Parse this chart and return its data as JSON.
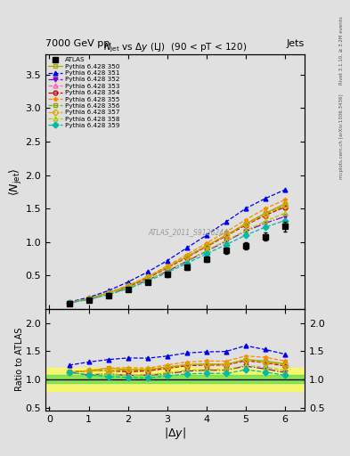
{
  "title_top": "7000 GeV pp",
  "title_top_right": "Jets",
  "main_title": "$N_{jet}$ vs $\\Delta y$ (LJ)  (90 < pT < 120)",
  "xlabel": "$|\\Delta y|$",
  "ylabel_main": "$\\langle N_{jet}\\rangle$",
  "ylabel_ratio": "Ratio to ATLAS",
  "watermark": "ATLAS_2011_S9126244",
  "right_label": "Rivet 3.1.10, ≥ 3.2M events",
  "right_label2": "mcplots.cern.ch [arXiv:1306.3436]",
  "x_data": [
    0.5,
    1.0,
    1.5,
    2.0,
    2.5,
    3.0,
    3.5,
    4.0,
    4.5,
    5.0,
    5.5,
    6.0
  ],
  "atlas_y": [
    0.08,
    0.13,
    0.2,
    0.29,
    0.4,
    0.51,
    0.62,
    0.74,
    0.87,
    0.94,
    1.08,
    1.23
  ],
  "atlas_yerr": [
    0.01,
    0.01,
    0.02,
    0.02,
    0.03,
    0.03,
    0.04,
    0.04,
    0.05,
    0.05,
    0.06,
    0.07
  ],
  "series": [
    {
      "label": "Pythia 6.428 350",
      "color": "#aaaa00",
      "linestyle": "-",
      "marker": "s",
      "markerfill": "none",
      "y": [
        0.09,
        0.15,
        0.24,
        0.34,
        0.47,
        0.62,
        0.78,
        0.94,
        1.1,
        1.27,
        1.43,
        1.57
      ]
    },
    {
      "label": "Pythia 6.428 351",
      "color": "#0000ee",
      "linestyle": "--",
      "marker": "^",
      "markerfill": "full",
      "y": [
        0.1,
        0.17,
        0.27,
        0.4,
        0.55,
        0.72,
        0.91,
        1.1,
        1.3,
        1.5,
        1.65,
        1.78
      ]
    },
    {
      "label": "Pythia 6.428 352",
      "color": "#8800cc",
      "linestyle": "-.",
      "marker": "v",
      "markerfill": "full",
      "y": [
        0.09,
        0.14,
        0.22,
        0.31,
        0.43,
        0.56,
        0.71,
        0.86,
        1.01,
        1.16,
        1.28,
        1.38
      ]
    },
    {
      "label": "Pythia 6.428 353",
      "color": "#ff66aa",
      "linestyle": "--",
      "marker": "^",
      "markerfill": "none",
      "y": [
        0.09,
        0.15,
        0.23,
        0.33,
        0.46,
        0.61,
        0.77,
        0.93,
        1.09,
        1.26,
        1.4,
        1.53
      ]
    },
    {
      "label": "Pythia 6.428 354",
      "color": "#cc0000",
      "linestyle": "--",
      "marker": "o",
      "markerfill": "none",
      "y": [
        0.09,
        0.15,
        0.23,
        0.33,
        0.46,
        0.61,
        0.77,
        0.93,
        1.09,
        1.25,
        1.4,
        1.52
      ]
    },
    {
      "label": "Pythia 6.428 355",
      "color": "#ff8800",
      "linestyle": "--",
      "marker": "*",
      "markerfill": "full",
      "y": [
        0.09,
        0.15,
        0.24,
        0.35,
        0.48,
        0.64,
        0.81,
        0.98,
        1.15,
        1.33,
        1.5,
        1.63
      ]
    },
    {
      "label": "Pythia 6.428 356",
      "color": "#88aa00",
      "linestyle": "--",
      "marker": "s",
      "markerfill": "none",
      "y": [
        0.09,
        0.15,
        0.23,
        0.34,
        0.47,
        0.62,
        0.78,
        0.94,
        1.1,
        1.27,
        1.42,
        1.55
      ]
    },
    {
      "label": "Pythia 6.428 357",
      "color": "#ddaa00",
      "linestyle": "-.",
      "marker": "D",
      "markerfill": "none",
      "y": [
        0.09,
        0.15,
        0.23,
        0.34,
        0.47,
        0.62,
        0.78,
        0.94,
        1.1,
        1.26,
        1.41,
        1.54
      ]
    },
    {
      "label": "Pythia 6.428 358",
      "color": "#aacc00",
      "linestyle": "--",
      "marker": "^",
      "markerfill": "none",
      "y": [
        0.09,
        0.14,
        0.22,
        0.31,
        0.43,
        0.57,
        0.72,
        0.87,
        1.02,
        1.17,
        1.31,
        1.43
      ]
    },
    {
      "label": "Pythia 6.428 359",
      "color": "#00bbaa",
      "linestyle": "--",
      "marker": "D",
      "markerfill": "full",
      "y": [
        0.09,
        0.14,
        0.21,
        0.3,
        0.41,
        0.54,
        0.68,
        0.82,
        0.96,
        1.1,
        1.22,
        1.32
      ]
    }
  ],
  "ylim_main": [
    0.0,
    3.8
  ],
  "ylim_ratio": [
    0.45,
    2.25
  ],
  "yticks_main": [
    0.5,
    1.0,
    1.5,
    2.0,
    2.5,
    3.0,
    3.5
  ],
  "yticks_ratio": [
    0.5,
    1.0,
    1.5,
    2.0
  ],
  "xlim": [
    -0.1,
    6.5
  ],
  "xticks": [
    0,
    1,
    2,
    3,
    4,
    5,
    6
  ],
  "green_band_inner": [
    0.93,
    1.07
  ],
  "yellow_band_outer": [
    0.8,
    1.2
  ],
  "bg_color": "#e0e0e0"
}
